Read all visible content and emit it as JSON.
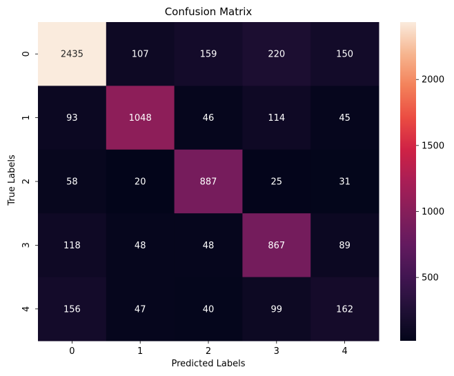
{
  "chart_data": {
    "type": "heatmap",
    "title": "Confusion Matrix",
    "xlabel": "Predicted Labels",
    "ylabel": "True Labels",
    "x_categories": [
      "0",
      "1",
      "2",
      "3",
      "4"
    ],
    "y_categories": [
      "0",
      "1",
      "2",
      "3",
      "4"
    ],
    "values": [
      [
        2435,
        107,
        159,
        220,
        150
      ],
      [
        93,
        1048,
        46,
        114,
        45
      ],
      [
        58,
        20,
        887,
        25,
        31
      ],
      [
        118,
        48,
        48,
        867,
        89
      ],
      [
        156,
        47,
        40,
        99,
        162
      ]
    ],
    "colormap": "rocket",
    "colorbar": {
      "range": [
        20,
        2435
      ],
      "ticks": [
        500,
        1000,
        1500,
        2000
      ]
    },
    "grid": false,
    "legend": "colorbar-right"
  }
}
